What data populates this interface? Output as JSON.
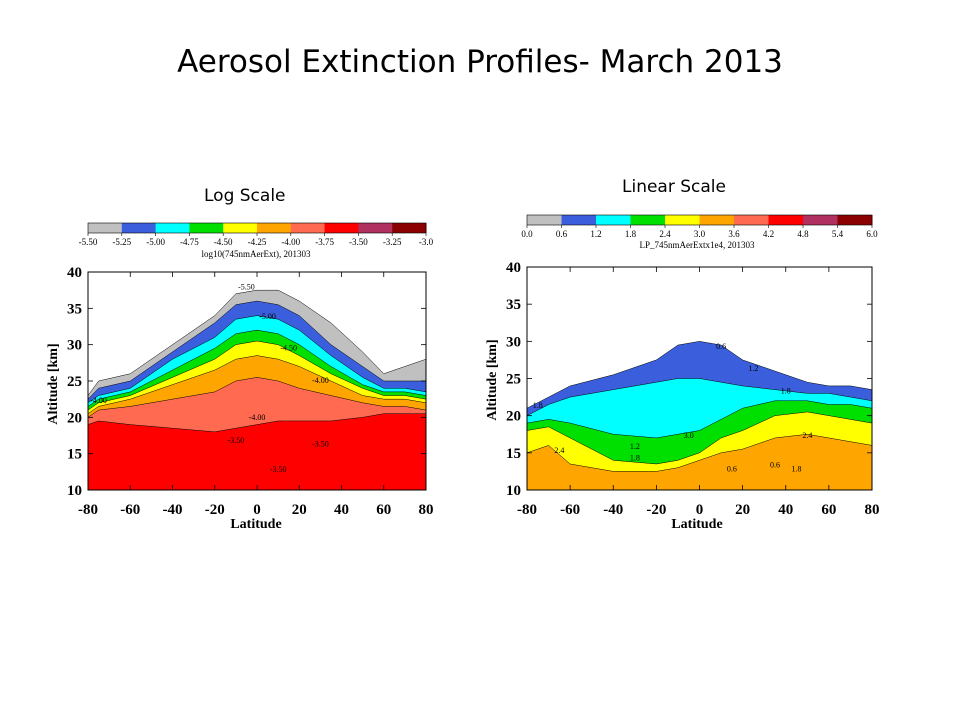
{
  "slide": {
    "title": "Aerosol Extinction Profiles- March 2013"
  },
  "colors": {
    "log_levels": [
      "#c0c0c0",
      "#3b5fdc",
      "#00ffff",
      "#00e000",
      "#ffff00",
      "#ffa500",
      "#ff6a50",
      "#ff0000",
      "#b03060",
      "#8b0000"
    ],
    "lin_levels": [
      "#c0c0c0",
      "#3b5fdc",
      "#00ffff",
      "#00e000",
      "#ffff00",
      "#ffa500",
      "#ff6a50",
      "#ff0000",
      "#b03060",
      "#8b0000"
    ]
  },
  "chart_data": [
    {
      "type": "contour",
      "panel_label": "Log Scale",
      "colorbar": {
        "ticks": [
          "-5.50",
          "-5.25",
          "-5.00",
          "-4.75",
          "-4.50",
          "-4.25",
          "-4.00",
          "-3.75",
          "-3.50",
          "-3.25",
          "-3.0"
        ],
        "label": "log10(745nmAerExt), 201303"
      },
      "xlabel": "Latitude",
      "ylabel": "Altitude [km]",
      "xlim": [
        -80,
        80
      ],
      "ylim": [
        10,
        40
      ],
      "xticks": [
        "-80",
        "-60",
        "-40",
        "-20",
        "0",
        "20",
        "40",
        "60",
        "80"
      ],
      "yticks": [
        "10",
        "15",
        "20",
        "25",
        "30",
        "35",
        "40"
      ],
      "level_bands": [
        {
          "level": 0,
          "lat": [
            -80,
            -75,
            -60,
            -40,
            -20,
            -10,
            0,
            10,
            20,
            35,
            50,
            60,
            70,
            80
          ],
          "top": [
            23,
            25,
            26,
            30,
            34,
            37,
            37.5,
            37.5,
            36,
            33,
            29,
            26,
            27,
            28
          ]
        },
        {
          "level": 1,
          "lat": [
            -80,
            -75,
            -60,
            -40,
            -20,
            -10,
            0,
            10,
            20,
            35,
            50,
            60,
            70,
            80
          ],
          "top": [
            22.5,
            24,
            25,
            29,
            33,
            35.5,
            36,
            35.5,
            34,
            30,
            27,
            25,
            25,
            25
          ]
        },
        {
          "level": 2,
          "lat": [
            -80,
            -75,
            -60,
            -40,
            -20,
            -10,
            0,
            10,
            20,
            35,
            50,
            60,
            70,
            80
          ],
          "top": [
            22,
            23,
            24,
            28,
            31,
            33.5,
            34,
            33.5,
            32,
            28.5,
            25.5,
            24,
            24,
            23.5
          ]
        },
        {
          "level": 3,
          "lat": [
            -80,
            -75,
            -60,
            -40,
            -20,
            -10,
            0,
            10,
            20,
            35,
            50,
            60,
            70,
            80
          ],
          "top": [
            21.5,
            22.5,
            23.5,
            26.5,
            29.5,
            31.5,
            32,
            31.5,
            30,
            27,
            24.5,
            23.5,
            23.5,
            23
          ]
        },
        {
          "level": 4,
          "lat": [
            -80,
            -75,
            -60,
            -40,
            -20,
            -10,
            0,
            10,
            20,
            35,
            50,
            60,
            70,
            80
          ],
          "top": [
            21,
            22,
            23,
            25.5,
            28,
            30,
            30.5,
            30,
            28.5,
            26,
            24,
            23,
            23,
            22.5
          ]
        },
        {
          "level": 5,
          "lat": [
            -80,
            -75,
            -60,
            -40,
            -20,
            -10,
            0,
            10,
            20,
            35,
            50,
            60,
            70,
            80
          ],
          "top": [
            20.5,
            21.5,
            22.5,
            24.5,
            26.5,
            28,
            28.5,
            28,
            27,
            25,
            23,
            22.5,
            22.5,
            22
          ]
        },
        {
          "level": 6,
          "lat": [
            -80,
            -75,
            -60,
            -40,
            -20,
            -10,
            0,
            10,
            20,
            35,
            50,
            60,
            70,
            80
          ],
          "top": [
            20,
            21,
            21.5,
            22.5,
            23.5,
            25,
            25.5,
            25,
            24,
            23,
            22,
            21.5,
            21.5,
            21
          ]
        },
        {
          "level": 7,
          "lat": [
            -80,
            -75,
            -60,
            -40,
            -20,
            -10,
            0,
            10,
            20,
            35,
            50,
            60,
            70,
            80
          ],
          "top": [
            19,
            19.5,
            19,
            18.5,
            18,
            18.5,
            19,
            19.5,
            19.5,
            19.5,
            20,
            20.5,
            20.5,
            20.5
          ]
        }
      ],
      "contour_labels": [
        "-5.50",
        "-5.00",
        "-4.50",
        "-4.00",
        "-4.00",
        "-4.00",
        "-3.50",
        "-3.50",
        "-3.50"
      ]
    },
    {
      "type": "contour",
      "panel_label": "Linear Scale",
      "colorbar": {
        "ticks": [
          "0.0",
          "0.6",
          "1.2",
          "1.8",
          "2.4",
          "3.0",
          "3.6",
          "4.2",
          "4.8",
          "5.4",
          "6.0"
        ],
        "label": "LP_745nmAerExtx1e4, 201303"
      },
      "xlabel": "Latitude",
      "ylabel": "Altitude [km]",
      "xlim": [
        -80,
        80
      ],
      "ylim": [
        10,
        40
      ],
      "xticks": [
        "-80",
        "-60",
        "-40",
        "-20",
        "0",
        "20",
        "40",
        "60",
        "80"
      ],
      "yticks": [
        "10",
        "15",
        "20",
        "25",
        "30",
        "35",
        "40"
      ],
      "level_bands": [
        {
          "level": 1,
          "lat": [
            -80,
            -70,
            -60,
            -40,
            -20,
            -10,
            0,
            10,
            20,
            35,
            50,
            60,
            70,
            80
          ],
          "top": [
            21,
            22.5,
            24,
            25.5,
            27.5,
            29.5,
            30,
            29.5,
            27.5,
            26,
            24.5,
            24,
            24,
            23.5
          ]
        },
        {
          "level": 2,
          "lat": [
            -80,
            -70,
            -60,
            -40,
            -20,
            -10,
            0,
            10,
            20,
            35,
            50,
            60,
            70,
            80
          ],
          "top": [
            20,
            21.5,
            22.5,
            23.5,
            24.5,
            25,
            25,
            24.5,
            24,
            23.5,
            23,
            23,
            22.5,
            22
          ]
        },
        {
          "level": 3,
          "lat": [
            -80,
            -70,
            -60,
            -40,
            -20,
            -10,
            0,
            10,
            20,
            35,
            50,
            60,
            70,
            80
          ],
          "top": [
            19,
            19.5,
            19,
            17.5,
            17,
            17.5,
            18,
            19.5,
            21,
            22,
            22,
            21.5,
            21.5,
            21
          ]
        },
        {
          "level": 4,
          "lat": [
            -80,
            -70,
            -60,
            -40,
            -20,
            -10,
            0,
            10,
            20,
            35,
            50,
            60,
            70,
            80
          ],
          "top": [
            18,
            18.5,
            17,
            14,
            13.5,
            14,
            15,
            17,
            18,
            20,
            20.5,
            20,
            19.5,
            19
          ]
        },
        {
          "level": 5,
          "lat": [
            -80,
            -70,
            -60,
            -40,
            -20,
            -10,
            0,
            10,
            20,
            35,
            50,
            60,
            70,
            80
          ],
          "top": [
            15,
            16,
            13.5,
            12.5,
            12.5,
            13,
            14,
            15,
            15.5,
            17,
            17.5,
            17,
            16.5,
            16
          ]
        }
      ],
      "contour_labels": [
        "0.6",
        "1.2",
        "1.8",
        "2.4",
        "1.2",
        "1.8",
        "1.8",
        "2.4",
        "3.0",
        "0.6",
        "0.6",
        "1.8"
      ]
    }
  ]
}
